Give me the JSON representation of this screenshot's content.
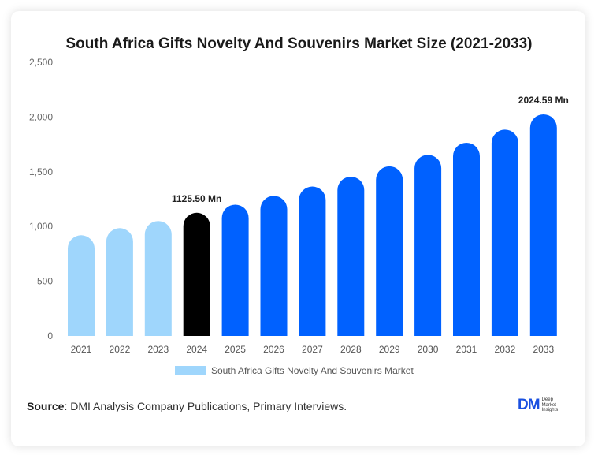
{
  "chart_data": {
    "type": "bar",
    "title": "South Africa Gifts Novelty And Souvenirs Market Size (2021-2033)",
    "categories": [
      "2021",
      "2022",
      "2023",
      "2024",
      "2025",
      "2026",
      "2027",
      "2028",
      "2029",
      "2030",
      "2031",
      "2032",
      "2033"
    ],
    "series": [
      {
        "name": "South Africa Gifts Novelty And Souvenirs Market",
        "values": [
          920,
          985,
          1050,
          1125.5,
          1200,
          1280,
          1365,
          1455,
          1550,
          1655,
          1765,
          1885,
          2024.59
        ]
      }
    ],
    "yticks": [
      "0",
      "500",
      "1,000",
      "1,500",
      "2,000",
      "2,500"
    ],
    "ylim": [
      0,
      2500
    ],
    "annotations": [
      {
        "category": "2024",
        "label": "1125.50 Mn"
      },
      {
        "category": "2033",
        "label": "2024.59 Mn"
      }
    ],
    "xlabel": "",
    "ylabel": "",
    "legend": "bottom-center",
    "colors": {
      "historical": "#9fd6fc",
      "base_year": "#000000",
      "forecast": "#0061ff"
    }
  },
  "legend": {
    "label": "South Africa Gifts Novelty And Souvenirs Market"
  },
  "source": {
    "label": "Source",
    "text": ": DMI Analysis Company Publications, Primary Interviews."
  },
  "logo": {
    "mark": "DM",
    "line1": "Deep",
    "line2": "Market",
    "line3": "Insights"
  }
}
